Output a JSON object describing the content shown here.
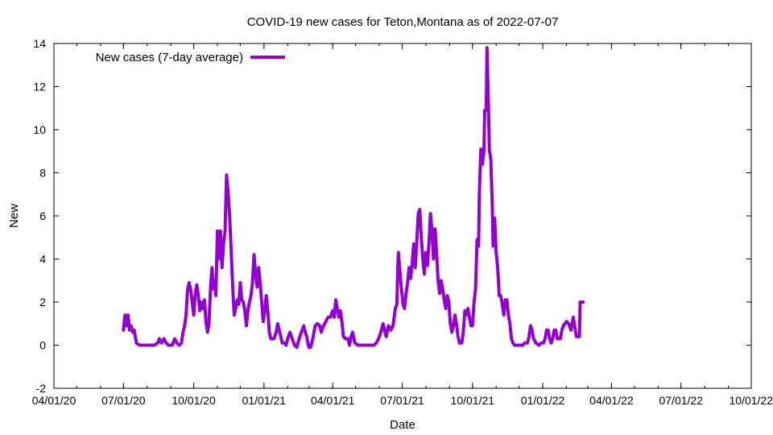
{
  "chart_data": {
    "type": "line",
    "title": "COVID-19 new cases for Teton,Montana as of 2022-07-07",
    "xlabel": "Date",
    "ylabel": "New",
    "ylim": [
      -2,
      14
    ],
    "yticks": [
      -2,
      0,
      2,
      4,
      6,
      8,
      10,
      12,
      14
    ],
    "xlim": [
      "2020-04-01",
      "2022-10-01"
    ],
    "xticks": [
      {
        "label": "04/01/20",
        "date": "2020-04-01"
      },
      {
        "label": "07/01/20",
        "date": "2020-07-01"
      },
      {
        "label": "10/01/20",
        "date": "2020-10-01"
      },
      {
        "label": "01/01/21",
        "date": "2021-01-01"
      },
      {
        "label": "04/01/21",
        "date": "2021-04-01"
      },
      {
        "label": "07/01/21",
        "date": "2021-07-01"
      },
      {
        "label": "10/01/21",
        "date": "2021-10-01"
      },
      {
        "label": "01/01/22",
        "date": "2022-01-01"
      },
      {
        "label": "04/01/22",
        "date": "2022-04-01"
      },
      {
        "label": "07/01/22",
        "date": "2022-07-01"
      },
      {
        "label": "10/01/22",
        "date": "2022-10-01"
      }
    ],
    "grid": false,
    "legend_position": "top-left",
    "series": [
      {
        "name": "New cases (7-day average)",
        "color": "#9400d3",
        "points": [
          [
            "2020-07-01",
            0.7
          ],
          [
            "2020-07-03",
            1.4
          ],
          [
            "2020-07-05",
            0.9
          ],
          [
            "2020-07-07",
            1.4
          ],
          [
            "2020-07-09",
            0.7
          ],
          [
            "2020-07-11",
            0.9
          ],
          [
            "2020-07-13",
            0.6
          ],
          [
            "2020-07-15",
            0.7
          ],
          [
            "2020-07-18",
            0.1
          ],
          [
            "2020-07-22",
            0.0
          ],
          [
            "2020-08-01",
            0.0
          ],
          [
            "2020-08-10",
            0.0
          ],
          [
            "2020-08-15",
            0.1
          ],
          [
            "2020-08-17",
            0.3
          ],
          [
            "2020-08-20",
            0.1
          ],
          [
            "2020-08-23",
            0.3
          ],
          [
            "2020-08-26",
            0.1
          ],
          [
            "2020-08-29",
            0.0
          ],
          [
            "2020-09-03",
            0.0
          ],
          [
            "2020-09-06",
            0.3
          ],
          [
            "2020-09-09",
            0.1
          ],
          [
            "2020-09-12",
            0.0
          ],
          [
            "2020-09-15",
            0.1
          ],
          [
            "2020-09-17",
            0.6
          ],
          [
            "2020-09-19",
            0.9
          ],
          [
            "2020-09-21",
            1.4
          ],
          [
            "2020-09-23",
            2.6
          ],
          [
            "2020-09-25",
            2.9
          ],
          [
            "2020-09-27",
            2.6
          ],
          [
            "2020-09-29",
            2.0
          ],
          [
            "2020-10-01",
            1.4
          ],
          [
            "2020-10-03",
            2.4
          ],
          [
            "2020-10-05",
            2.8
          ],
          [
            "2020-10-07",
            2.3
          ],
          [
            "2020-10-09",
            1.6
          ],
          [
            "2020-10-11",
            2.0
          ],
          [
            "2020-10-13",
            1.7
          ],
          [
            "2020-10-15",
            2.1
          ],
          [
            "2020-10-17",
            1.1
          ],
          [
            "2020-10-19",
            0.6
          ],
          [
            "2020-10-21",
            1.0
          ],
          [
            "2020-10-23",
            2.6
          ],
          [
            "2020-10-25",
            3.6
          ],
          [
            "2020-10-27",
            2.6
          ],
          [
            "2020-10-29",
            3.0
          ],
          [
            "2020-10-30",
            2.3
          ],
          [
            "2020-11-01",
            5.3
          ],
          [
            "2020-11-03",
            4.0
          ],
          [
            "2020-11-05",
            5.3
          ],
          [
            "2020-11-07",
            3.6
          ],
          [
            "2020-11-09",
            4.7
          ],
          [
            "2020-11-11",
            5.3
          ],
          [
            "2020-11-13",
            7.9
          ],
          [
            "2020-11-15",
            7.1
          ],
          [
            "2020-11-17",
            6.0
          ],
          [
            "2020-11-19",
            4.4
          ],
          [
            "2020-11-21",
            2.7
          ],
          [
            "2020-11-23",
            1.4
          ],
          [
            "2020-11-25",
            1.7
          ],
          [
            "2020-11-27",
            2.1
          ],
          [
            "2020-11-29",
            1.9
          ],
          [
            "2020-12-01",
            2.9
          ],
          [
            "2020-12-03",
            2.1
          ],
          [
            "2020-12-05",
            2.0
          ],
          [
            "2020-12-07",
            1.6
          ],
          [
            "2020-12-09",
            0.9
          ],
          [
            "2020-12-11",
            1.6
          ],
          [
            "2020-12-13",
            2.0
          ],
          [
            "2020-12-15",
            2.3
          ],
          [
            "2020-12-17",
            2.9
          ],
          [
            "2020-12-19",
            4.2
          ],
          [
            "2020-12-21",
            3.3
          ],
          [
            "2020-12-23",
            2.7
          ],
          [
            "2020-12-25",
            3.6
          ],
          [
            "2020-12-27",
            2.9
          ],
          [
            "2020-12-29",
            2.0
          ],
          [
            "2020-12-31",
            1.1
          ],
          [
            "2021-01-02",
            1.6
          ],
          [
            "2021-01-04",
            2.3
          ],
          [
            "2021-01-06",
            1.6
          ],
          [
            "2021-01-08",
            0.6
          ],
          [
            "2021-01-10",
            0.3
          ],
          [
            "2021-01-14",
            0.3
          ],
          [
            "2021-01-17",
            0.6
          ],
          [
            "2021-01-19",
            1.0
          ],
          [
            "2021-01-21",
            0.7
          ],
          [
            "2021-01-23",
            0.4
          ],
          [
            "2021-01-25",
            0.1
          ],
          [
            "2021-01-28",
            0.1
          ],
          [
            "2021-01-30",
            0.0
          ],
          [
            "2021-02-01",
            0.3
          ],
          [
            "2021-02-04",
            0.6
          ],
          [
            "2021-02-07",
            0.3
          ],
          [
            "2021-02-10",
            0.0
          ],
          [
            "2021-02-13",
            -0.1
          ],
          [
            "2021-02-16",
            0.3
          ],
          [
            "2021-02-19",
            0.6
          ],
          [
            "2021-02-22",
            0.9
          ],
          [
            "2021-02-24",
            0.6
          ],
          [
            "2021-02-26",
            0.4
          ],
          [
            "2021-02-28",
            0.0
          ],
          [
            "2021-03-01",
            -0.1
          ],
          [
            "2021-03-03",
            -0.1
          ],
          [
            "2021-03-06",
            0.3
          ],
          [
            "2021-03-09",
            0.9
          ],
          [
            "2021-03-12",
            1.0
          ],
          [
            "2021-03-15",
            0.9
          ],
          [
            "2021-03-17",
            0.6
          ],
          [
            "2021-03-20",
            0.9
          ],
          [
            "2021-03-23",
            1.1
          ],
          [
            "2021-03-26",
            1.3
          ],
          [
            "2021-03-29",
            1.3
          ],
          [
            "2021-04-01",
            1.6
          ],
          [
            "2021-04-03",
            1.3
          ],
          [
            "2021-04-05",
            2.1
          ],
          [
            "2021-04-07",
            1.7
          ],
          [
            "2021-04-09",
            1.3
          ],
          [
            "2021-04-11",
            1.6
          ],
          [
            "2021-04-13",
            1.1
          ],
          [
            "2021-04-15",
            0.4
          ],
          [
            "2021-04-18",
            0.3
          ],
          [
            "2021-04-21",
            0.3
          ],
          [
            "2021-04-23",
            0.0
          ],
          [
            "2021-04-25",
            0.4
          ],
          [
            "2021-04-27",
            0.6
          ],
          [
            "2021-04-30",
            0.1
          ],
          [
            "2021-05-04",
            0.0
          ],
          [
            "2021-05-15",
            0.0
          ],
          [
            "2021-05-25",
            0.0
          ],
          [
            "2021-05-28",
            0.1
          ],
          [
            "2021-05-31",
            0.3
          ],
          [
            "2021-06-03",
            0.6
          ],
          [
            "2021-06-06",
            1.0
          ],
          [
            "2021-06-08",
            0.7
          ],
          [
            "2021-06-10",
            0.4
          ],
          [
            "2021-06-13",
            0.9
          ],
          [
            "2021-06-16",
            0.7
          ],
          [
            "2021-06-19",
            0.9
          ],
          [
            "2021-06-22",
            1.7
          ],
          [
            "2021-06-24",
            1.9
          ],
          [
            "2021-06-25",
            3.3
          ],
          [
            "2021-06-26",
            4.3
          ],
          [
            "2021-06-28",
            3.4
          ],
          [
            "2021-06-30",
            2.6
          ],
          [
            "2021-07-02",
            1.9
          ],
          [
            "2021-07-04",
            1.7
          ],
          [
            "2021-07-06",
            2.4
          ],
          [
            "2021-07-08",
            2.9
          ],
          [
            "2021-07-10",
            3.6
          ],
          [
            "2021-07-12",
            3.1
          ],
          [
            "2021-07-14",
            3.8
          ],
          [
            "2021-07-16",
            4.7
          ],
          [
            "2021-07-18",
            3.6
          ],
          [
            "2021-07-20",
            4.7
          ],
          [
            "2021-07-22",
            6.1
          ],
          [
            "2021-07-24",
            6.3
          ],
          [
            "2021-07-26",
            5.0
          ],
          [
            "2021-07-28",
            4.0
          ],
          [
            "2021-07-30",
            3.3
          ],
          [
            "2021-08-01",
            4.3
          ],
          [
            "2021-08-03",
            3.7
          ],
          [
            "2021-08-05",
            4.7
          ],
          [
            "2021-08-07",
            6.1
          ],
          [
            "2021-08-09",
            5.3
          ],
          [
            "2021-08-11",
            4.0
          ],
          [
            "2021-08-13",
            5.4
          ],
          [
            "2021-08-15",
            4.3
          ],
          [
            "2021-08-17",
            3.0
          ],
          [
            "2021-08-19",
            2.4
          ],
          [
            "2021-08-21",
            3.0
          ],
          [
            "2021-08-23",
            2.6
          ],
          [
            "2021-08-25",
            2.1
          ],
          [
            "2021-08-27",
            1.7
          ],
          [
            "2021-08-29",
            2.3
          ],
          [
            "2021-08-31",
            2.0
          ],
          [
            "2021-09-02",
            1.0
          ],
          [
            "2021-09-04",
            0.6
          ],
          [
            "2021-09-06",
            0.9
          ],
          [
            "2021-09-08",
            1.4
          ],
          [
            "2021-09-10",
            1.0
          ],
          [
            "2021-09-12",
            0.4
          ],
          [
            "2021-09-14",
            0.1
          ],
          [
            "2021-09-17",
            0.1
          ],
          [
            "2021-09-19",
            0.6
          ],
          [
            "2021-09-21",
            1.6
          ],
          [
            "2021-09-23",
            1.4
          ],
          [
            "2021-09-25",
            1.7
          ],
          [
            "2021-09-27",
            1.3
          ],
          [
            "2021-09-29",
            0.9
          ],
          [
            "2021-10-01",
            0.9
          ],
          [
            "2021-10-03",
            2.0
          ],
          [
            "2021-10-05",
            2.6
          ],
          [
            "2021-10-07",
            4.9
          ],
          [
            "2021-10-09",
            4.6
          ],
          [
            "2021-10-10",
            7.0
          ],
          [
            "2021-10-12",
            9.1
          ],
          [
            "2021-10-14",
            8.4
          ],
          [
            "2021-10-16",
            9.0
          ],
          [
            "2021-10-17",
            10.9
          ],
          [
            "2021-10-19",
            10.9
          ],
          [
            "2021-10-20",
            13.8
          ],
          [
            "2021-10-22",
            11.0
          ],
          [
            "2021-10-23",
            9.1
          ],
          [
            "2021-10-25",
            8.6
          ],
          [
            "2021-10-27",
            6.3
          ],
          [
            "2021-10-28",
            4.6
          ],
          [
            "2021-10-30",
            5.9
          ],
          [
            "2021-11-01",
            4.3
          ],
          [
            "2021-11-03",
            3.6
          ],
          [
            "2021-11-05",
            2.3
          ],
          [
            "2021-11-07",
            2.3
          ],
          [
            "2021-11-09",
            1.9
          ],
          [
            "2021-11-11",
            1.4
          ],
          [
            "2021-11-13",
            2.1
          ],
          [
            "2021-11-15",
            2.1
          ],
          [
            "2021-11-17",
            1.4
          ],
          [
            "2021-11-19",
            1.0
          ],
          [
            "2021-11-21",
            0.3
          ],
          [
            "2021-11-23",
            0.1
          ],
          [
            "2021-11-25",
            0.0
          ],
          [
            "2021-12-01",
            0.0
          ],
          [
            "2021-12-06",
            0.0
          ],
          [
            "2021-12-08",
            0.1
          ],
          [
            "2021-12-12",
            0.1
          ],
          [
            "2021-12-14",
            0.4
          ],
          [
            "2021-12-16",
            0.9
          ],
          [
            "2021-12-18",
            0.7
          ],
          [
            "2021-12-20",
            0.3
          ],
          [
            "2021-12-23",
            0.1
          ],
          [
            "2021-12-27",
            0.0
          ],
          [
            "2021-12-30",
            0.1
          ],
          [
            "2022-01-02",
            0.1
          ],
          [
            "2022-01-04",
            0.3
          ],
          [
            "2022-01-06",
            0.7
          ],
          [
            "2022-01-08",
            0.7
          ],
          [
            "2022-01-10",
            0.3
          ],
          [
            "2022-01-12",
            0.1
          ],
          [
            "2022-01-14",
            0.3
          ],
          [
            "2022-01-16",
            0.7
          ],
          [
            "2022-01-18",
            0.7
          ],
          [
            "2022-01-20",
            0.3
          ],
          [
            "2022-01-24",
            0.3
          ],
          [
            "2022-01-26",
            0.7
          ],
          [
            "2022-01-28",
            0.9
          ],
          [
            "2022-02-01",
            1.1
          ],
          [
            "2022-02-04",
            1.0
          ],
          [
            "2022-02-07",
            0.7
          ],
          [
            "2022-02-10",
            1.3
          ],
          [
            "2022-02-14",
            0.4
          ],
          [
            "2022-02-18",
            0.4
          ],
          [
            "2022-02-19",
            2.0
          ],
          [
            "2022-02-23",
            2.0
          ]
        ]
      }
    ]
  }
}
